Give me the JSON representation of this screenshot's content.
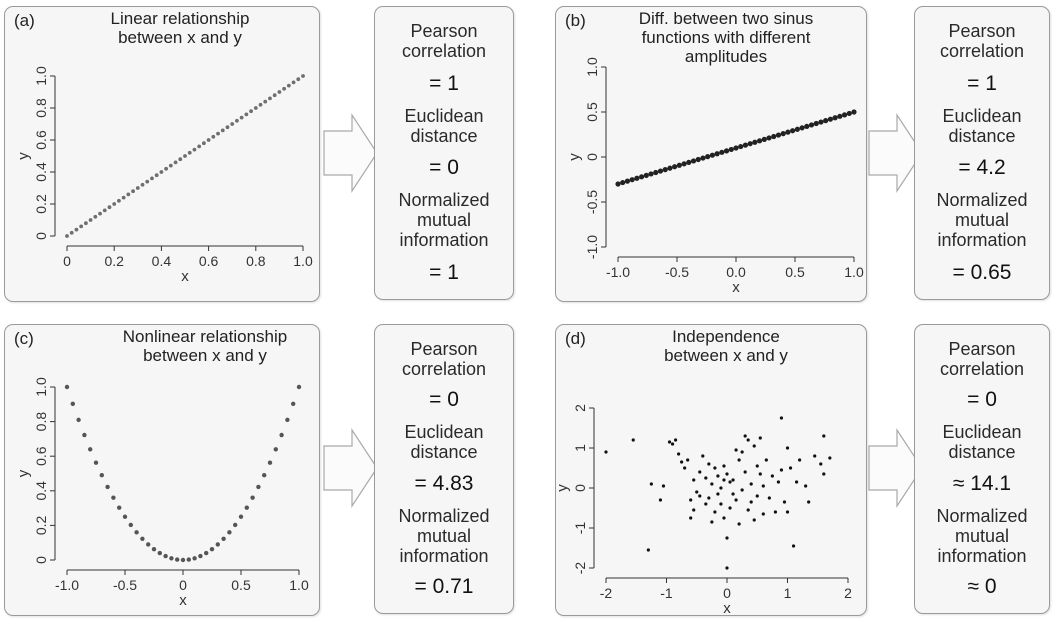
{
  "chart_data": [
    {
      "id": "a",
      "letter": "(a)",
      "title": "Linear relationship\nbetween x and y",
      "type": "scatter",
      "xlabel": "x",
      "ylabel": "y",
      "xlim": [
        0,
        1
      ],
      "ylim": [
        0,
        1
      ],
      "xticks": [
        0,
        0.2,
        0.4,
        0.6,
        0.8,
        1.0
      ],
      "xtick_labels": [
        "0",
        "0.2",
        "0.4",
        "0.6",
        "0.8",
        "1.0"
      ],
      "yticks": [
        0,
        0.2,
        0.4,
        0.6,
        0.8,
        1.0
      ],
      "ytick_labels": [
        "0",
        "0.2",
        "0.4",
        "0.6",
        "0.8",
        "1.0"
      ],
      "function": "y = x",
      "x_range": [
        0,
        1
      ],
      "n_points": 51,
      "marker_color": "#6f6f6f",
      "stats": [
        {
          "label": "Pearson\ncorrelation",
          "value": "= 1"
        },
        {
          "label": "Euclidean\ndistance",
          "value": "= 0"
        },
        {
          "label": "Normalized\nmutual\ninformation",
          "value": "= 1"
        }
      ]
    },
    {
      "id": "b",
      "letter": "(b)",
      "title": "Diff. between two sinus\nfunctions with different\namplitudes",
      "type": "scatter",
      "xlabel": "x",
      "ylabel": "y",
      "xlim": [
        -1,
        1
      ],
      "ylim": [
        -1,
        1
      ],
      "xticks": [
        -1,
        -0.5,
        0,
        0.5,
        1
      ],
      "xtick_labels": [
        "-1.0",
        "-0.5",
        "0.0",
        "0.5",
        "1.0"
      ],
      "yticks": [
        -1,
        -0.5,
        0,
        0.5,
        1
      ],
      "ytick_labels": [
        "-1.0",
        "-0.5",
        "0",
        "0.5",
        "1.0"
      ],
      "function": "y = 0.4x + 0.1",
      "x_range": [
        -1,
        1
      ],
      "n_points": 51,
      "marker_color": "#222222",
      "stats": [
        {
          "label": "Pearson\ncorrelation",
          "value": "= 1"
        },
        {
          "label": "Euclidean\ndistance",
          "value": "= 4.2"
        },
        {
          "label": "Normalized\nmutual\ninformation",
          "value": "= 0.65"
        }
      ]
    },
    {
      "id": "c",
      "letter": "(c)",
      "title": "Nonlinear relationship\nbetween x and y",
      "type": "scatter",
      "xlabel": "x",
      "ylabel": "y",
      "xlim": [
        -1,
        1
      ],
      "ylim": [
        0,
        1
      ],
      "xticks": [
        -1,
        -0.5,
        0,
        0.5,
        1
      ],
      "xtick_labels": [
        "-1.0",
        "-0.5",
        "0",
        "0.5",
        "1.0"
      ],
      "yticks": [
        0,
        0.2,
        0.4,
        0.6,
        0.8,
        1.0
      ],
      "ytick_labels": [
        "0",
        "0.2",
        "0.4",
        "0.6",
        "0.8",
        "1.0"
      ],
      "function": "y = x^2",
      "x_range": [
        -1,
        1
      ],
      "n_points": 41,
      "marker_color": "#555555",
      "stats": [
        {
          "label": "Pearson\ncorrelation",
          "value": "= 0"
        },
        {
          "label": "Euclidean\ndistance",
          "value": "= 4.83"
        },
        {
          "label": "Normalized\nmutual\ninformation",
          "value": "= 0.71"
        }
      ]
    },
    {
      "id": "d",
      "letter": "(d)",
      "title": "Independence\nbetween x and y",
      "type": "scatter",
      "xlabel": "x",
      "ylabel": "y",
      "xlim": [
        -2,
        2
      ],
      "ylim": [
        -2,
        2
      ],
      "xticks": [
        -2,
        -1,
        0,
        1,
        2
      ],
      "xtick_labels": [
        "-2",
        "-1",
        "0",
        "1",
        "2"
      ],
      "yticks": [
        -2,
        -1,
        0,
        1,
        2
      ],
      "ytick_labels": [
        "-2",
        "-1",
        "0",
        "1",
        "2"
      ],
      "marker_color": "#111111",
      "points": [
        [
          -2.0,
          0.9
        ],
        [
          -1.55,
          1.2
        ],
        [
          -1.3,
          -1.55
        ],
        [
          -1.25,
          0.1
        ],
        [
          -1.1,
          -0.3
        ],
        [
          -1.05,
          0.05
        ],
        [
          -0.95,
          1.15
        ],
        [
          -0.9,
          1.1
        ],
        [
          -0.85,
          1.2
        ],
        [
          -0.8,
          0.85
        ],
        [
          -0.75,
          0.65
        ],
        [
          -0.7,
          0.5
        ],
        [
          -0.65,
          0.7
        ],
        [
          -0.6,
          -0.3
        ],
        [
          -0.55,
          -0.55
        ],
        [
          -0.55,
          0.2
        ],
        [
          -0.5,
          -0.1
        ],
        [
          -0.45,
          -0.2
        ],
        [
          -0.45,
          0.4
        ],
        [
          -0.4,
          0.8
        ],
        [
          -0.35,
          -0.4
        ],
        [
          -0.35,
          0.25
        ],
        [
          -0.3,
          -0.25
        ],
        [
          -0.3,
          0.6
        ],
        [
          -0.25,
          -0.85
        ],
        [
          -0.25,
          0.1
        ],
        [
          -0.2,
          0.5
        ],
        [
          -0.2,
          -0.6
        ],
        [
          -0.15,
          0.3
        ],
        [
          -0.15,
          -0.15
        ],
        [
          -0.1,
          -0.4
        ],
        [
          -0.1,
          0.0
        ],
        [
          -0.05,
          0.55
        ],
        [
          -0.05,
          -0.75
        ],
        [
          0.0,
          -1.25
        ],
        [
          0.0,
          -2.0
        ],
        [
          0.0,
          0.35
        ],
        [
          0.05,
          0.15
        ],
        [
          0.05,
          -0.5
        ],
        [
          0.1,
          0.2
        ],
        [
          0.1,
          -0.15
        ],
        [
          0.15,
          -0.3
        ],
        [
          0.2,
          0.7
        ],
        [
          0.2,
          -0.9
        ],
        [
          0.25,
          0.9
        ],
        [
          0.25,
          -0.05
        ],
        [
          0.3,
          1.3
        ],
        [
          0.3,
          0.4
        ],
        [
          0.35,
          1.2
        ],
        [
          0.35,
          -0.55
        ],
        [
          0.4,
          0.1
        ],
        [
          0.4,
          -0.35
        ],
        [
          0.45,
          1.05
        ],
        [
          0.45,
          -0.8
        ],
        [
          0.5,
          0.55
        ],
        [
          0.5,
          -0.2
        ],
        [
          0.55,
          0.35
        ],
        [
          0.55,
          1.25
        ],
        [
          0.6,
          -0.65
        ],
        [
          0.6,
          0.05
        ],
        [
          0.65,
          0.7
        ],
        [
          0.7,
          -0.25
        ],
        [
          0.75,
          0.3
        ],
        [
          0.8,
          -0.6
        ],
        [
          0.85,
          0.15
        ],
        [
          0.9,
          1.75
        ],
        [
          0.9,
          0.45
        ],
        [
          0.95,
          -0.35
        ],
        [
          1.0,
          1.0
        ],
        [
          1.0,
          -0.6
        ],
        [
          1.05,
          0.5
        ],
        [
          1.1,
          -1.45
        ],
        [
          1.15,
          0.15
        ],
        [
          1.2,
          0.7
        ],
        [
          1.3,
          0.05
        ],
        [
          1.35,
          -0.35
        ],
        [
          1.45,
          0.8
        ],
        [
          1.55,
          0.6
        ],
        [
          1.6,
          1.3
        ],
        [
          1.6,
          0.35
        ],
        [
          1.7,
          0.75
        ],
        [
          -0.6,
          -0.75
        ],
        [
          0.15,
          0.95
        ],
        [
          -0.05,
          0.2
        ]
      ],
      "stats": [
        {
          "label": "Pearson\ncorrelation",
          "value": "= 0"
        },
        {
          "label": "Euclidean\ndistance",
          "value": "≈ 14.1"
        },
        {
          "label": "Normalized\nmutual\ninformation",
          "value": "≈ 0"
        }
      ]
    }
  ],
  "style": {
    "panel_bg": "#f6f6f6",
    "panel_border": "#9a9a9a",
    "arrow_fill": "#fbfbfb",
    "arrow_stroke": "#a9a9a9"
  }
}
